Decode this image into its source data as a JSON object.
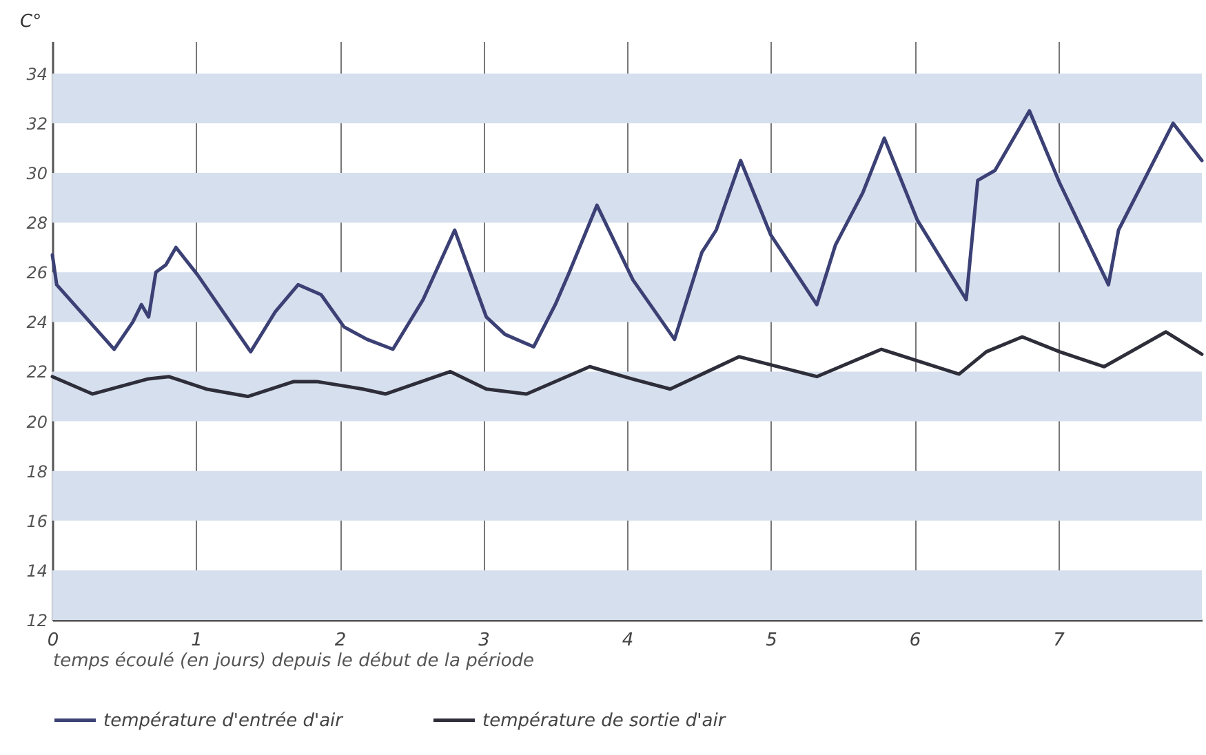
{
  "chart_data": {
    "type": "line",
    "ylabel": "C°",
    "xlabel": "temps écoulé (en jours) depuis le début de la période",
    "xlim": [
      0,
      8
    ],
    "xticks": [
      0,
      1,
      2,
      3,
      4,
      5,
      6,
      7
    ],
    "ylim": [
      12,
      35.3
    ],
    "yticks": [
      12,
      14,
      16,
      18,
      20,
      22,
      24,
      26,
      28,
      30,
      32,
      34
    ],
    "grid": "x",
    "legend": "bottom",
    "line_style": "solid",
    "bands": [
      {
        "axis": "y",
        "from": 32,
        "to": 34,
        "color": "#d5dfed"
      },
      {
        "axis": "y",
        "from": 28,
        "to": 30,
        "color": "#d5dfed"
      },
      {
        "axis": "y",
        "from": 24,
        "to": 26,
        "color": "#d5dfed"
      },
      {
        "axis": "y",
        "from": 20,
        "to": 22,
        "color": "#d5dfed"
      },
      {
        "axis": "y",
        "from": 16,
        "to": 18,
        "color": "#d5dfed"
      },
      {
        "axis": "y",
        "from": 12,
        "to": 14,
        "color": "#d5dfed"
      }
    ],
    "series": [
      {
        "name": "température d'entrée d'air",
        "color": "#3b4075",
        "x": [
          0,
          0.03,
          0.43,
          0.56,
          0.62,
          0.67,
          0.72,
          0.79,
          0.86,
          1.01,
          1.38,
          1.55,
          1.71,
          1.87,
          2.03,
          2.19,
          2.37,
          2.58,
          2.8,
          3.02,
          3.15,
          3.35,
          3.5,
          3.59,
          3.79,
          4.04,
          4.33,
          4.52,
          4.62,
          4.79,
          5.0,
          5.32,
          5.45,
          5.64,
          5.79,
          6.02,
          6.36,
          6.44,
          6.56,
          6.8,
          7.01,
          7.35,
          7.42,
          7.8,
          8.0
        ],
        "values": [
          26.7,
          25.5,
          22.9,
          24.0,
          24.7,
          24.2,
          26.0,
          26.3,
          27.0,
          25.9,
          22.8,
          24.4,
          25.5,
          25.1,
          23.8,
          23.3,
          22.9,
          24.9,
          27.7,
          24.2,
          23.5,
          23.0,
          24.7,
          25.9,
          28.7,
          25.7,
          23.3,
          26.8,
          27.7,
          30.5,
          27.5,
          24.7,
          27.1,
          29.2,
          31.4,
          28.1,
          24.9,
          29.7,
          30.1,
          32.5,
          29.6,
          25.5,
          27.7,
          32.0,
          30.5
        ]
      },
      {
        "name": "température de sortie d'air",
        "color": "#2e2e3a",
        "x": [
          0,
          0.28,
          0.66,
          0.81,
          1.07,
          1.36,
          1.68,
          1.84,
          2.16,
          2.32,
          2.77,
          3.02,
          3.3,
          3.74,
          4.04,
          4.3,
          4.78,
          5.32,
          5.77,
          6.31,
          6.5,
          6.75,
          7.01,
          7.32,
          7.75,
          8.0
        ],
        "values": [
          21.8,
          21.1,
          21.7,
          21.8,
          21.3,
          21.0,
          21.6,
          21.6,
          21.3,
          21.1,
          22.0,
          21.3,
          21.1,
          22.2,
          21.7,
          21.3,
          22.6,
          21.8,
          22.9,
          21.9,
          22.8,
          23.4,
          22.8,
          22.2,
          23.6,
          22.7
        ]
      }
    ]
  }
}
